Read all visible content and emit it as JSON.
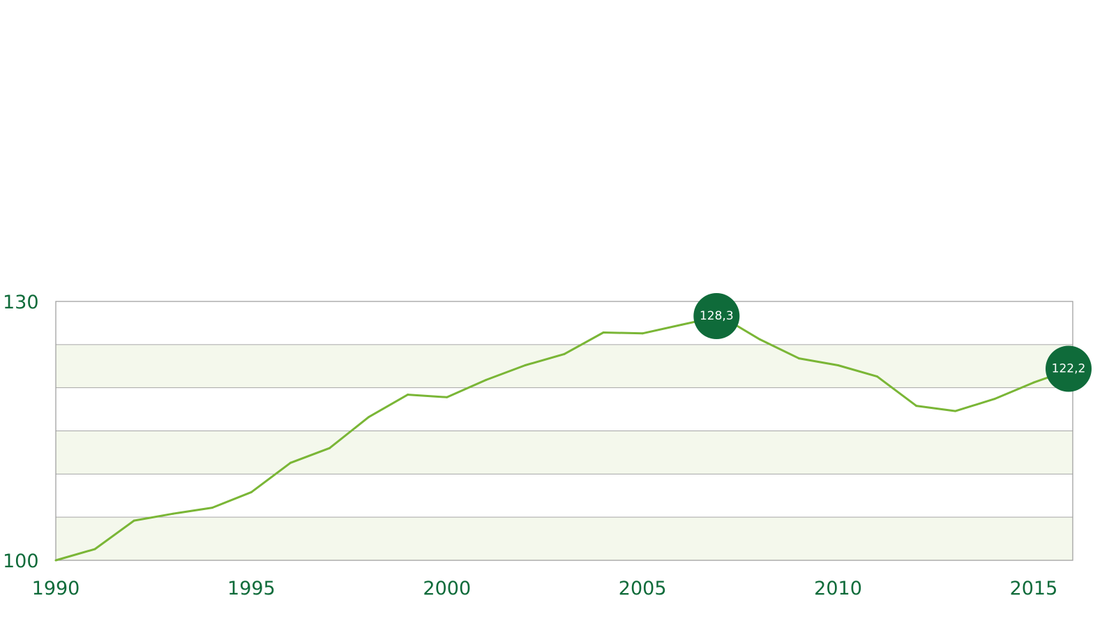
{
  "chart_data": {
    "type": "line",
    "title": "",
    "xlabel": "",
    "ylabel": "",
    "x": [
      1990,
      1991,
      1992,
      1993,
      1994,
      1995,
      1996,
      1997,
      1998,
      1999,
      2000,
      2001,
      2002,
      2003,
      2004,
      2005,
      2006,
      2007,
      2008,
      2009,
      2010,
      2011,
      2012,
      2013,
      2014,
      2015,
      2016
    ],
    "series": [
      {
        "name": "",
        "values": [
          100,
          101.3,
          104.6,
          105.4,
          106.1,
          107.9,
          111.3,
          113,
          116.6,
          119.2,
          118.9,
          120.9,
          122.6,
          123.9,
          126.4,
          126.3,
          127.3,
          128.3,
          125.6,
          123.4,
          122.6,
          121.3,
          117.9,
          117.3,
          118.7,
          120.6,
          122.2
        ],
        "color": "#7ab636"
      }
    ],
    "annotations": [
      {
        "x": 2007,
        "y": 128.3,
        "text": "128,3"
      },
      {
        "x": 2016,
        "y": 122.2,
        "text": "122,2"
      }
    ],
    "x_ticks": [
      "1990",
      "1995",
      "2000",
      "2005",
      "2010",
      "2015"
    ],
    "y_ticks": [
      "100",
      "130"
    ],
    "ylim": [
      100,
      130
    ],
    "xlim": [
      1990,
      2016
    ],
    "grid": true,
    "band_color": "#f4f8ec",
    "callout_color": "#0f6b3a",
    "axis_text_color": "#0f6b3a"
  }
}
